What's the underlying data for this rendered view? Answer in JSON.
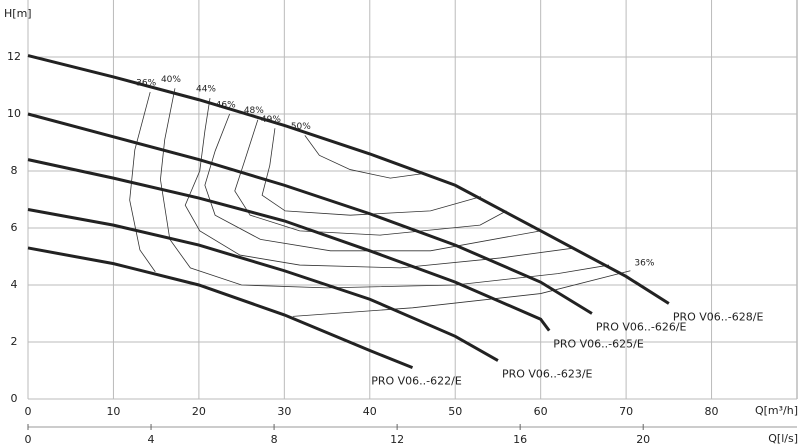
{
  "chart_data": {
    "type": "line",
    "y_label": "H[m]",
    "x_label": "Q[m³/h]",
    "x2_label": "Q[l/s]",
    "xlim": [
      0,
      90
    ],
    "ylim": [
      0,
      14
    ],
    "xticks": [
      0,
      10,
      20,
      30,
      40,
      50,
      60,
      70,
      80
    ],
    "yticks": [
      0,
      2,
      4,
      6,
      8,
      10,
      12
    ],
    "x2lim": [
      0,
      25
    ],
    "x2ticks": [
      0,
      4,
      8,
      12,
      16,
      20
    ],
    "grid": true,
    "series": [
      {
        "name": "PRO V06..-628/E",
        "color": "#222222",
        "x": [
          0,
          10,
          20,
          30,
          40,
          50,
          60,
          70,
          75
        ],
        "values": [
          12.05,
          11.3,
          10.5,
          9.6,
          8.6,
          7.5,
          5.9,
          4.3,
          3.35
        ]
      },
      {
        "name": "PRO V06..-626/E",
        "color": "#222222",
        "x": [
          0,
          10,
          20,
          30,
          40,
          50,
          60,
          66
        ],
        "values": [
          10.0,
          9.2,
          8.4,
          7.5,
          6.5,
          5.4,
          4.1,
          3.0
        ]
      },
      {
        "name": "PRO V06..-625/E",
        "color": "#222222",
        "x": [
          0,
          10,
          20,
          30,
          40,
          50,
          60,
          61
        ],
        "values": [
          8.4,
          7.75,
          7.05,
          6.25,
          5.2,
          4.1,
          2.8,
          2.4
        ]
      },
      {
        "name": "PRO V06..-623/E",
        "color": "#222222",
        "x": [
          0,
          10,
          20,
          30,
          40,
          50,
          55
        ],
        "values": [
          6.65,
          6.1,
          5.4,
          4.5,
          3.5,
          2.2,
          1.35
        ]
      },
      {
        "name": "PRO V06..-622/E",
        "color": "#222222",
        "x": [
          0,
          10,
          20,
          30,
          40,
          45
        ],
        "values": [
          5.3,
          4.75,
          4.0,
          2.95,
          1.7,
          1.1
        ]
      }
    ],
    "efficiency": [
      {
        "name": "36%",
        "x": [
          14.3,
          12.5,
          11.9,
          13.1,
          14.9,
          null,
          31,
          45,
          60,
          70.5
        ],
        "values": [
          10.77,
          8.74,
          6.98,
          5.23,
          4.46,
          null,
          2.9,
          3.2,
          3.7,
          4.5
        ]
      },
      {
        "name": "40%",
        "x": [
          17.2,
          16.0,
          15.5,
          16.6,
          19,
          25,
          35,
          50,
          62,
          68
        ],
        "values": [
          10.9,
          9.1,
          7.7,
          5.6,
          4.6,
          4.0,
          3.9,
          4.0,
          4.4,
          4.7
        ]
      },
      {
        "name": "44%",
        "x": [
          21.3,
          20.7,
          20.1,
          18.4,
          20.1,
          24.8,
          31.8,
          43.6,
          55.3,
          64
        ],
        "values": [
          10.56,
          9.4,
          8.0,
          6.8,
          5.9,
          5.05,
          4.7,
          4.6,
          4.95,
          5.3
        ]
      },
      {
        "name": "46%",
        "x": [
          23.6,
          21.9,
          20.7,
          21.9,
          27.2,
          35.4,
          47.1,
          60
        ],
        "values": [
          10.0,
          8.7,
          7.5,
          6.45,
          5.6,
          5.2,
          5.2,
          5.9
        ]
      },
      {
        "name": "48%",
        "x": [
          26.9,
          25.4,
          24.2,
          26,
          31.8,
          41.2,
          52.9,
          56
        ],
        "values": [
          9.8,
          8.4,
          7.3,
          6.45,
          5.9,
          5.75,
          6.1,
          6.6
        ]
      },
      {
        "name": "49%",
        "x": [
          28.9,
          28.3,
          27.4,
          30.1,
          37.7,
          47.1,
          53
        ],
        "values": [
          9.5,
          8.2,
          7.15,
          6.6,
          6.45,
          6.6,
          7.1
        ]
      },
      {
        "name": "50%",
        "x": [
          32.4,
          34.1,
          37.7,
          42.4,
          46
        ],
        "values": [
          9.25,
          8.55,
          8.05,
          7.75,
          7.9
        ]
      }
    ]
  }
}
